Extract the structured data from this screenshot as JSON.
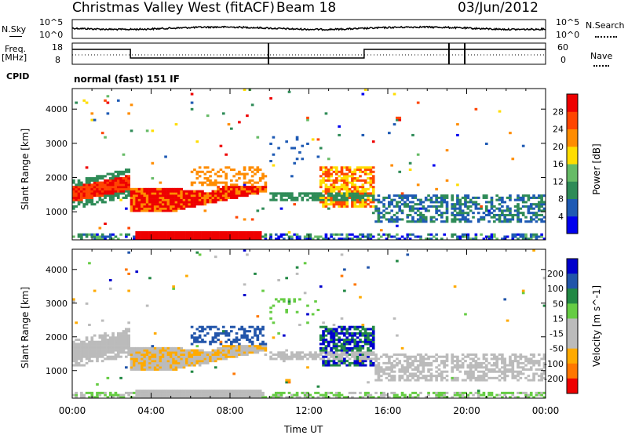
{
  "header": {
    "title": "Christmas Valley West (fitACF)",
    "beam": "Beam 18",
    "date": "03/Jun/2012"
  },
  "params": {
    "nsky_label": "N.Sky",
    "nsearch_label": "N.Search",
    "freq_label_1": "Freq.",
    "freq_label_2": "[MHz]",
    "nave_label": "Nave",
    "cpid_label": "CPID",
    "cpid_value": "normal (fast) 151 IF",
    "noise_ticks": [
      "10^5",
      "10^0"
    ],
    "freq_ticks": [
      "18",
      "8"
    ],
    "nave_ticks": [
      "60",
      "0"
    ]
  },
  "colors": {
    "power": [
      "#0000ee",
      "#1e5ab4",
      "#2e8b57",
      "#66bb66",
      "#ffdd00",
      "#ff8c00",
      "#ff4500",
      "#ee0000"
    ],
    "velocity": [
      "#0000cc",
      "#2255aa",
      "#228844",
      "#66cc44",
      "#bbbbbb",
      "#bbbbbb",
      "#ffaa00",
      "#ff7700",
      "#ff3300",
      "#ee0000"
    ]
  },
  "chart_data": [
    {
      "type": "heatmap",
      "panel": "power",
      "xlabel": "",
      "ylabel": "Slant Range [km]",
      "x_ticks": [],
      "y_ticks": [
        "1000",
        "2000",
        "3000",
        "4000"
      ],
      "ylim": [
        180,
        4600
      ],
      "xlim": [
        0,
        24
      ],
      "colorbar_label": "Power [dB]",
      "colorbar_ticks": [
        "4",
        "8",
        "12",
        "16",
        "20",
        "24",
        "28"
      ]
    },
    {
      "type": "heatmap",
      "panel": "velocity",
      "xlabel": "Time UT",
      "ylabel": "Slant Range [km]",
      "x_ticks": [
        "00:00",
        "04:00",
        "08:00",
        "12:00",
        "16:00",
        "20:00",
        "00:00"
      ],
      "y_ticks": [
        "1000",
        "2000",
        "3000",
        "4000"
      ],
      "ylim": [
        180,
        4600
      ],
      "xlim": [
        0,
        24
      ],
      "colorbar_label": "Velocity [m s^-1]",
      "colorbar_ticks": [
        "200",
        "100",
        "50",
        "15",
        "-15",
        "-50",
        "-100",
        "-200"
      ]
    }
  ]
}
